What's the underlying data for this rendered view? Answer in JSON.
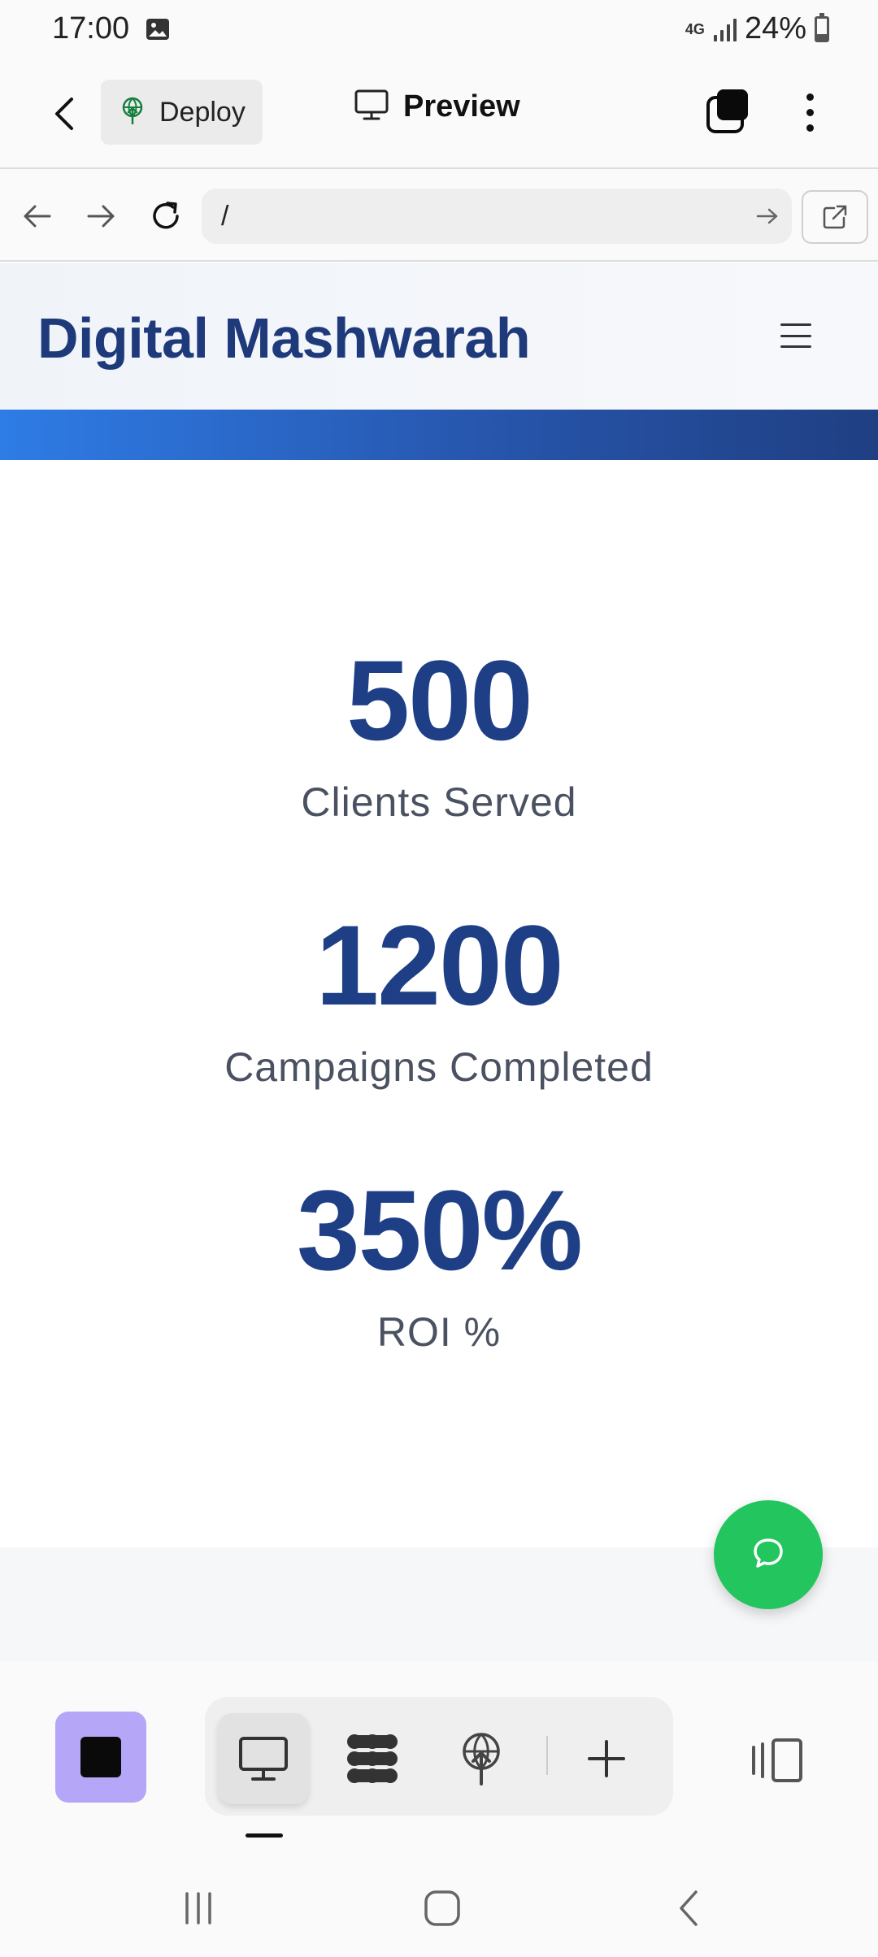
{
  "status_bar": {
    "time": "17:00",
    "network_type": "4G",
    "battery_percent": "24%",
    "battery_level": 0.24,
    "icons": [
      "image-icon",
      "network-4g-icon",
      "signal-icon",
      "battery-icon"
    ]
  },
  "app_bar": {
    "deploy_label": "Deploy",
    "preview_label": "Preview",
    "icons": [
      "back-arrow-icon",
      "deploy-icon",
      "monitor-icon",
      "tabs-icon",
      "more-vertical-icon"
    ]
  },
  "browser": {
    "url_value": "/",
    "icons": [
      "back-icon",
      "forward-icon",
      "refresh-icon",
      "go-arrow-icon",
      "external-link-icon"
    ]
  },
  "site": {
    "title": "Digital Mashwarah",
    "menu_icon": "hamburger-icon"
  },
  "stats": [
    {
      "number": "500",
      "label": "Clients Served"
    },
    {
      "number": "1200",
      "label": "Campaigns Completed"
    },
    {
      "number": "350%",
      "label": "ROI %"
    }
  ],
  "fab": {
    "icon": "chat-bubble-icon",
    "color": "#22c55e"
  },
  "bottom_toolbar": {
    "stop_color": "#b5a6f7",
    "modes": [
      "desktop-preview-icon",
      "apps-grid-icon",
      "deploy-globe-icon",
      "add-icon"
    ],
    "active_mode": "desktop-preview-icon",
    "layout_icon": "split-panel-icon"
  },
  "system_nav": [
    "recent-apps-icon",
    "home-icon",
    "back-nav-icon"
  ],
  "colors": {
    "brand_navy": "#1e3f86",
    "accent_blue": "#2e7ce6",
    "label_gray": "#4a5160"
  }
}
